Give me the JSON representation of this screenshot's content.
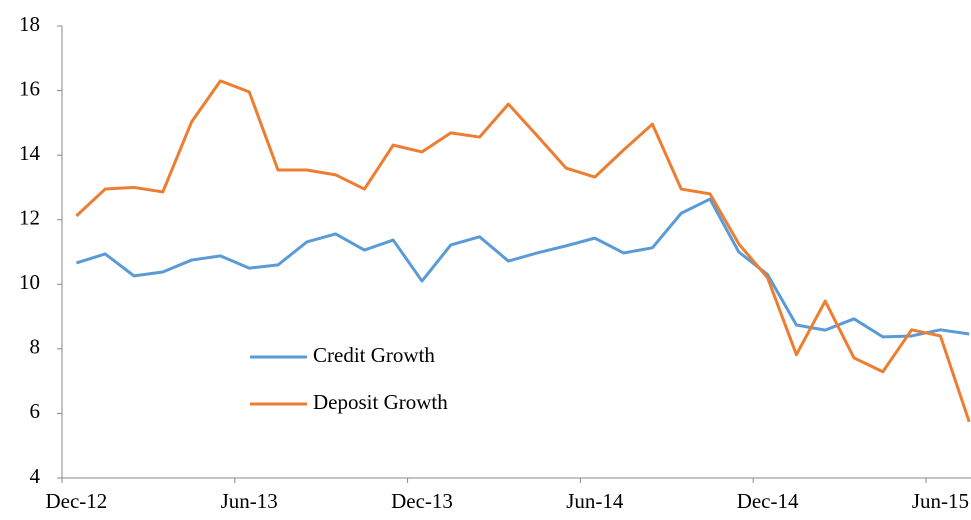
{
  "chart_data": {
    "type": "line",
    "categories": [
      "Dec-12",
      null,
      null,
      null,
      null,
      null,
      "Jun-13",
      null,
      null,
      null,
      null,
      null,
      "Dec-13",
      null,
      null,
      null,
      null,
      null,
      "Jun-14",
      null,
      null,
      null,
      null,
      null,
      "Dec-14",
      null,
      null,
      null,
      null,
      null,
      "Jun-15",
      null
    ],
    "series": [
      {
        "name": "Credit Growth",
        "color": "#5b9bd5",
        "values": [
          10.66,
          10.94,
          10.26,
          10.38,
          10.75,
          10.88,
          10.5,
          10.6,
          11.31,
          11.56,
          11.06,
          11.37,
          10.1,
          11.22,
          11.47,
          10.72,
          10.97,
          11.19,
          11.43,
          10.97,
          11.13,
          12.2,
          12.64,
          11.0,
          10.3,
          8.74,
          8.58,
          8.93,
          8.37,
          8.4,
          8.59,
          8.46
        ]
      },
      {
        "name": "Deposit Growth",
        "color": "#ed7d31",
        "values": [
          12.12,
          12.95,
          13.0,
          12.86,
          15.03,
          16.3,
          15.96,
          13.54,
          13.54,
          13.39,
          12.95,
          14.31,
          14.1,
          14.69,
          14.56,
          15.58,
          14.6,
          13.6,
          13.32,
          14.16,
          14.96,
          12.95,
          12.8,
          11.25,
          10.2,
          7.82,
          9.48,
          7.72,
          7.29,
          8.59,
          8.4,
          5.74
        ]
      }
    ],
    "ylim": [
      4,
      18
    ],
    "yticks": [
      4,
      6,
      8,
      10,
      12,
      14,
      16,
      18
    ],
    "grid": false,
    "legend": "center-left"
  }
}
